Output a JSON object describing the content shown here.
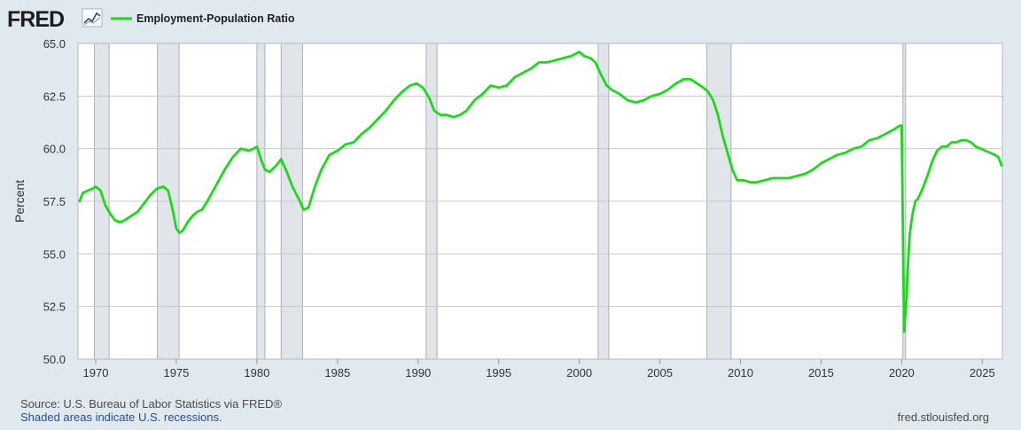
{
  "header": {
    "logo_text": "FRED",
    "legend_label": "Employment-Population Ratio"
  },
  "footer": {
    "source": "Source: U.S. Bureau of Labor Statistics via FRED®",
    "shaded_note": "Shaded areas indicate U.S. recessions.",
    "site": "fred.stlouisfed.org"
  },
  "colors": {
    "background": "#e1e9f0",
    "plot_background": "#ffffff",
    "series": "#1ed81e",
    "recession_fill": "#e1e5ea",
    "gridline": "#c8c8c8",
    "logo": "#1d1d1d",
    "link_blue": "#2a4d8d"
  },
  "chart_data": {
    "type": "line",
    "title": "",
    "xlabel": "",
    "ylabel": "Percent",
    "xlim": [
      1968.9,
      2026.25
    ],
    "ylim": [
      50.0,
      65.0
    ],
    "grid": true,
    "legend_placement": "top-left",
    "x_ticks": [
      1970,
      1975,
      1980,
      1985,
      1990,
      1995,
      2000,
      2005,
      2010,
      2015,
      2020,
      2025
    ],
    "x_tick_labels": [
      "1970",
      "1975",
      "1980",
      "1985",
      "1990",
      "1995",
      "2000",
      "2005",
      "2010",
      "2015",
      "2020",
      "2025"
    ],
    "y_ticks": [
      50.0,
      52.5,
      55.0,
      57.5,
      60.0,
      62.5,
      65.0
    ],
    "y_tick_labels": [
      "50.0",
      "52.5",
      "55.0",
      "57.5",
      "60.0",
      "62.5",
      "65.0"
    ],
    "recessions": [
      [
        1969.92,
        1970.83
      ],
      [
        1973.83,
        1975.17
      ],
      [
        1980.0,
        1980.5
      ],
      [
        1981.5,
        1982.83
      ],
      [
        1990.5,
        1991.17
      ],
      [
        2001.17,
        2001.83
      ],
      [
        2007.92,
        2009.42
      ],
      [
        2020.08,
        2020.25
      ]
    ],
    "series": [
      {
        "name": "Employment-Population Ratio",
        "x": [
          1969.0,
          1969.2,
          1969.5,
          1969.8,
          1970.0,
          1970.3,
          1970.6,
          1970.9,
          1971.2,
          1971.5,
          1971.8,
          1972.2,
          1972.6,
          1973.0,
          1973.4,
          1973.8,
          1974.2,
          1974.5,
          1974.8,
          1975.0,
          1975.2,
          1975.4,
          1975.7,
          1976.0,
          1976.3,
          1976.6,
          1977.0,
          1977.5,
          1978.0,
          1978.5,
          1979.0,
          1979.5,
          1979.8,
          1980.0,
          1980.3,
          1980.5,
          1980.8,
          1981.2,
          1981.5,
          1981.8,
          1982.2,
          1982.6,
          1982.9,
          1983.2,
          1983.6,
          1984.0,
          1984.5,
          1985.0,
          1985.5,
          1986.0,
          1986.5,
          1987.0,
          1987.5,
          1988.0,
          1988.5,
          1989.0,
          1989.5,
          1989.9,
          1990.3,
          1990.7,
          1991.0,
          1991.4,
          1991.8,
          1992.2,
          1992.6,
          1993.0,
          1993.5,
          1994.0,
          1994.5,
          1995.0,
          1995.5,
          1996.0,
          1996.5,
          1997.0,
          1997.5,
          1998.0,
          1998.5,
          1999.0,
          1999.5,
          2000.0,
          2000.3,
          2000.7,
          2001.0,
          2001.3,
          2001.7,
          2002.0,
          2002.5,
          2003.0,
          2003.5,
          2004.0,
          2004.5,
          2005.0,
          2005.5,
          2006.0,
          2006.5,
          2006.9,
          2007.3,
          2007.7,
          2008.0,
          2008.3,
          2008.6,
          2008.9,
          2009.2,
          2009.5,
          2009.8,
          2010.2,
          2010.6,
          2011.0,
          2011.5,
          2012.0,
          2012.5,
          2013.0,
          2013.5,
          2014.0,
          2014.5,
          2015.0,
          2015.5,
          2016.0,
          2016.5,
          2017.0,
          2017.5,
          2018.0,
          2018.5,
          2019.0,
          2019.5,
          2019.9,
          2020.0,
          2020.15,
          2020.3,
          2020.4,
          2020.5,
          2020.6,
          2020.7,
          2020.85,
          2021.0,
          2021.3,
          2021.6,
          2021.9,
          2022.2,
          2022.5,
          2022.8,
          2023.1,
          2023.4,
          2023.7,
          2024.0,
          2024.3,
          2024.6,
          2024.9,
          2025.2,
          2025.5,
          2025.8,
          2026.0,
          2026.2
        ],
        "y": [
          57.5,
          57.9,
          58.0,
          58.1,
          58.2,
          58.0,
          57.3,
          56.9,
          56.6,
          56.5,
          56.6,
          56.8,
          57.0,
          57.4,
          57.8,
          58.1,
          58.2,
          58.0,
          57.0,
          56.2,
          56.0,
          56.1,
          56.5,
          56.8,
          57.0,
          57.1,
          57.6,
          58.3,
          59.0,
          59.6,
          60.0,
          59.9,
          60.0,
          60.1,
          59.4,
          59.0,
          58.9,
          59.2,
          59.5,
          59.0,
          58.2,
          57.6,
          57.1,
          57.2,
          58.2,
          59.0,
          59.7,
          59.9,
          60.2,
          60.3,
          60.7,
          61.0,
          61.4,
          61.8,
          62.3,
          62.7,
          63.0,
          63.1,
          62.9,
          62.4,
          61.8,
          61.6,
          61.6,
          61.5,
          61.6,
          61.8,
          62.3,
          62.6,
          63.0,
          62.9,
          63.0,
          63.4,
          63.6,
          63.8,
          64.1,
          64.1,
          64.2,
          64.3,
          64.4,
          64.6,
          64.4,
          64.3,
          64.1,
          63.6,
          63.0,
          62.8,
          62.6,
          62.3,
          62.2,
          62.3,
          62.5,
          62.6,
          62.8,
          63.1,
          63.3,
          63.3,
          63.1,
          62.9,
          62.7,
          62.3,
          61.6,
          60.6,
          59.8,
          59.0,
          58.5,
          58.5,
          58.4,
          58.4,
          58.5,
          58.6,
          58.6,
          58.6,
          58.7,
          58.8,
          59.0,
          59.3,
          59.5,
          59.7,
          59.8,
          60.0,
          60.1,
          60.4,
          60.5,
          60.7,
          60.9,
          61.1,
          61.1,
          51.3,
          52.8,
          54.6,
          55.9,
          56.5,
          57.0,
          57.5,
          57.6,
          58.1,
          58.7,
          59.4,
          59.9,
          60.1,
          60.1,
          60.3,
          60.3,
          60.4,
          60.4,
          60.3,
          60.1,
          60.0,
          59.9,
          59.8,
          59.7,
          59.6,
          59.2
        ]
      }
    ]
  }
}
